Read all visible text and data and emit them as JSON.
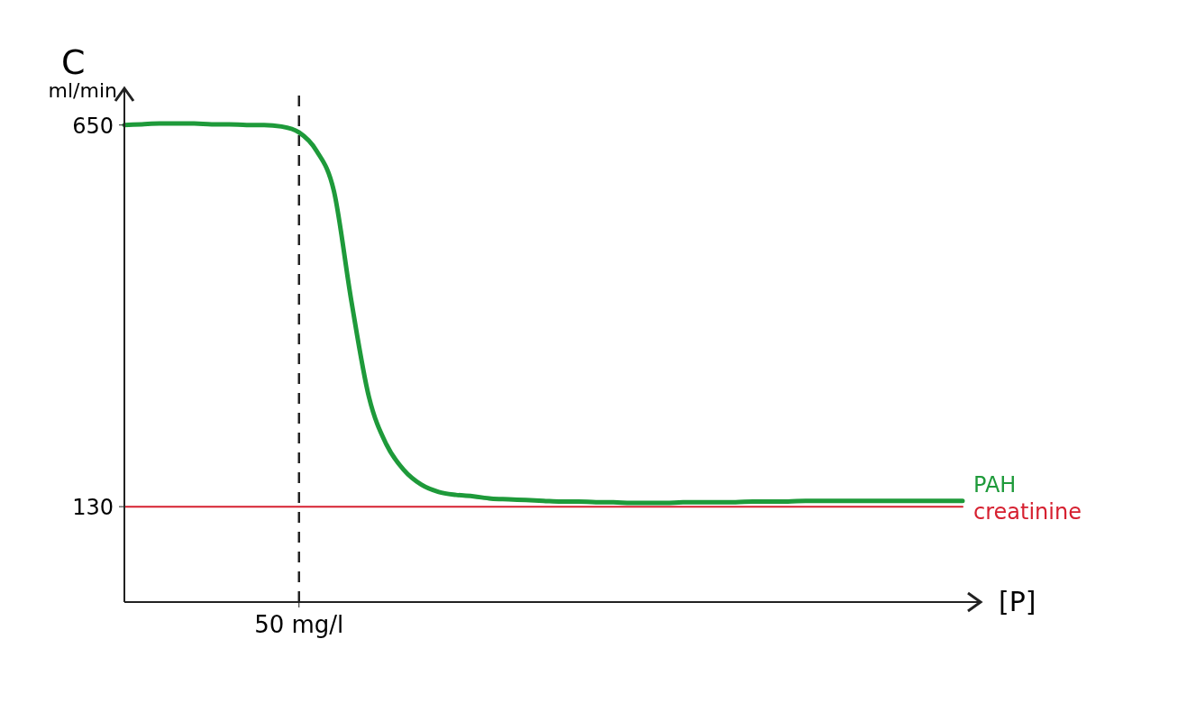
{
  "chart_data": {
    "type": "line",
    "ylabel": "C",
    "xlabel": "[P]",
    "annotations": [
      "ml/min"
    ],
    "categories": [
      null,
      null,
      null,
      null,
      null,
      null,
      null,
      null,
      null,
      null,
      "50 mg/l",
      null,
      null,
      null,
      null,
      null,
      null,
      null,
      null,
      null,
      null,
      null,
      null,
      null,
      null,
      null,
      null,
      null,
      null,
      null,
      null,
      null,
      null,
      null,
      null,
      null,
      null,
      null,
      null,
      null,
      null,
      null,
      null,
      null,
      null,
      null,
      null,
      null,
      null
    ],
    "ylim": [
      0,
      700
    ],
    "yticks": [
      130,
      650
    ],
    "grid": false,
    "marker": "none",
    "line_style": "solid",
    "ref_lines": [
      {
        "axis": "x",
        "value": "50 mg/l",
        "label": null,
        "color": "#222222",
        "line_style": "dashed"
      }
    ],
    "series": [
      {
        "name": "PAH",
        "color": "#1e9a3a",
        "values": [
          650,
          651,
          652,
          652,
          652,
          651,
          651,
          650,
          650,
          648,
          640,
          615,
          560,
          410,
          280,
          215,
          180,
          160,
          150,
          146,
          144,
          141,
          140,
          139,
          138,
          137,
          137,
          136,
          136,
          135,
          135,
          135,
          136,
          136,
          136,
          136,
          137,
          137,
          137,
          138,
          138,
          138,
          138,
          138,
          138,
          138,
          138,
          138,
          138
        ]
      },
      {
        "name": "creatinine",
        "color": "#d62030",
        "values": [
          130,
          130,
          130,
          130,
          130,
          130,
          130,
          130,
          130,
          130,
          130,
          130,
          130,
          130,
          130,
          130,
          130,
          130,
          130,
          130,
          130,
          130,
          130,
          130,
          130,
          130,
          130,
          130,
          130,
          130,
          130,
          130,
          130,
          130,
          130,
          130,
          130,
          130,
          130,
          130,
          130,
          130,
          130,
          130,
          130,
          130,
          130,
          130,
          130
        ]
      }
    ]
  }
}
